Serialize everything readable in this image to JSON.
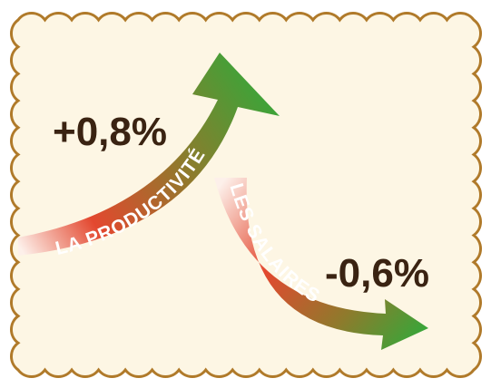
{
  "arrows": [
    {
      "label": "LA PRODUCTIVITÉ",
      "value": "+0,8%"
    },
    {
      "label": "LES SALAIRES",
      "value": "-0,6%"
    }
  ]
}
